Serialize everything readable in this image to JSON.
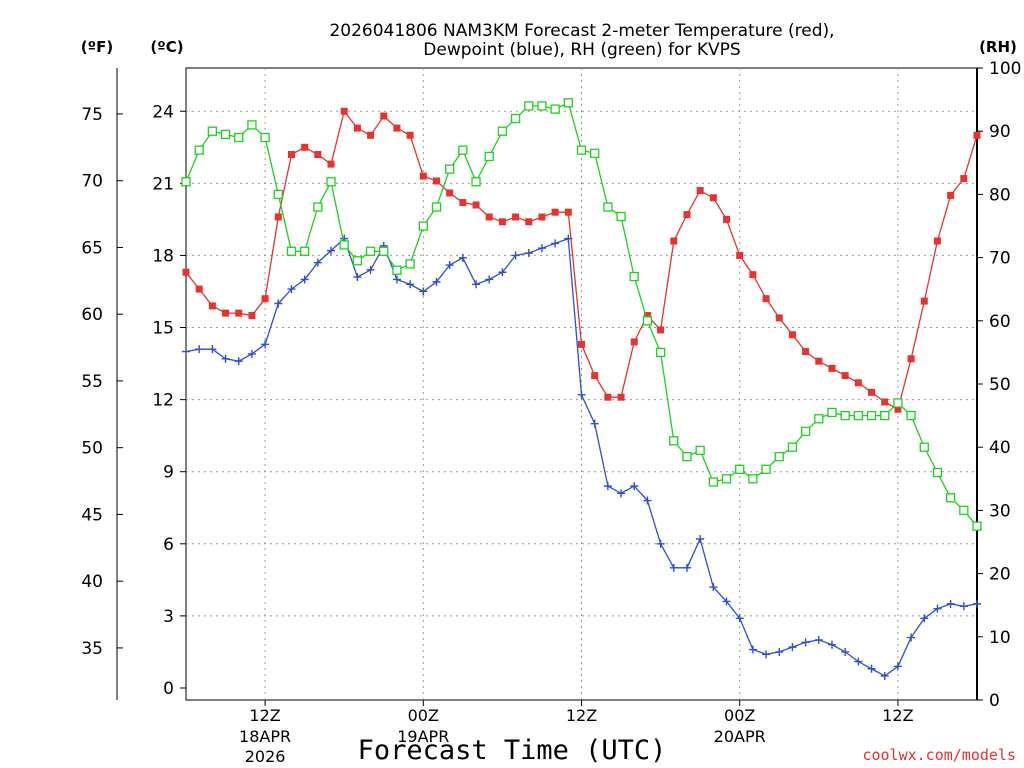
{
  "chart_data": {
    "type": "line",
    "title_line1": "2026041806 NAM3KM Forecast 2-meter Temperature (red),",
    "title_line2": "Dewpoint (blue), RH (green) for KVPS",
    "xlabel": "Forecast Time (UTC)",
    "watermark": "coolwx.com/models",
    "units": {
      "fahrenheit": "(ºF)",
      "celsius": "(ºC)",
      "rh": "(RH)"
    },
    "x_hours": [
      0,
      1,
      2,
      3,
      4,
      5,
      6,
      7,
      8,
      9,
      10,
      11,
      12,
      13,
      14,
      15,
      16,
      17,
      18,
      19,
      20,
      21,
      22,
      23,
      24,
      25,
      26,
      27,
      28,
      29,
      30,
      31,
      32,
      33,
      34,
      35,
      36,
      37,
      38,
      39,
      40,
      41,
      42,
      43,
      44,
      45,
      46,
      47,
      48,
      49,
      50,
      51,
      52,
      53,
      54,
      55,
      56,
      57,
      58,
      59,
      60
    ],
    "xlim": [
      0,
      60
    ],
    "x_ticks": [
      {
        "hour": 6,
        "line1": "12Z",
        "line2": "18APR",
        "line3": "2026"
      },
      {
        "hour": 18,
        "line1": "00Z",
        "line2": "19APR",
        "line3": ""
      },
      {
        "hour": 30,
        "line1": "12Z",
        "line2": "",
        "line3": ""
      },
      {
        "hour": 42,
        "line1": "00Z",
        "line2": "20APR",
        "line3": ""
      },
      {
        "hour": 54,
        "line1": "12Z",
        "line2": "",
        "line3": ""
      }
    ],
    "celsius_ticks": [
      "0",
      "3",
      "6",
      "9",
      "12",
      "15",
      "18",
      "21",
      "24"
    ],
    "fahrenheit_ticks": [
      "35",
      "40",
      "45",
      "50",
      "55",
      "60",
      "65",
      "70",
      "75"
    ],
    "rh_ticks": [
      "0",
      "10",
      "20",
      "30",
      "40",
      "50",
      "60",
      "70",
      "80",
      "90",
      "100"
    ],
    "c_range": [
      -0.5,
      25.8
    ],
    "series": [
      {
        "name": "2-meter Temperature (°C)",
        "color": "#e8322e",
        "marker": "filled-square",
        "values": [
          17.3,
          16.6,
          15.9,
          15.6,
          15.6,
          15.5,
          16.2,
          19.6,
          22.2,
          22.5,
          22.2,
          21.8,
          24.0,
          23.3,
          23.0,
          23.8,
          23.3,
          23.0,
          21.3,
          21.1,
          20.6,
          20.2,
          20.1,
          19.6,
          19.4,
          19.6,
          19.4,
          19.6,
          19.8,
          19.8,
          14.3,
          13.0,
          12.1,
          12.1,
          14.4,
          15.5,
          14.9,
          18.6,
          19.7,
          20.7,
          20.4,
          19.5,
          18.0,
          17.2,
          16.2,
          15.4,
          14.7,
          14.0,
          13.6,
          13.3,
          13.0,
          12.7,
          12.3,
          11.9,
          11.6,
          13.7,
          16.1,
          18.6,
          20.5,
          21.2,
          23.0
        ]
      },
      {
        "name": "Dewpoint (°C)",
        "color": "#2c4fd8",
        "marker": "plus",
        "values": [
          14.0,
          14.1,
          14.1,
          13.7,
          13.6,
          13.9,
          14.3,
          16.0,
          16.6,
          17.0,
          17.7,
          18.2,
          18.7,
          17.1,
          17.4,
          18.4,
          17.0,
          16.8,
          16.5,
          16.9,
          17.6,
          17.9,
          16.8,
          17.0,
          17.3,
          18.0,
          18.1,
          18.3,
          18.5,
          18.7,
          12.2,
          11.0,
          8.4,
          8.1,
          8.4,
          7.8,
          6.0,
          5.0,
          5.0,
          6.2,
          4.2,
          3.6,
          2.9,
          1.6,
          1.4,
          1.5,
          1.7,
          1.9,
          2.0,
          1.8,
          1.5,
          1.1,
          0.8,
          0.5,
          0.9,
          2.1,
          2.9,
          3.3,
          3.5,
          3.4,
          3.5
        ]
      },
      {
        "name": "RH (%)",
        "color": "#1ed11e",
        "marker": "open-square",
        "values": [
          82,
          87,
          90,
          89.5,
          89,
          91,
          89,
          80,
          71,
          71,
          78,
          82,
          72,
          69.5,
          71,
          71,
          68,
          69,
          75,
          78,
          84,
          87,
          82,
          86,
          90,
          92,
          94,
          94,
          93.5,
          94.5,
          87,
          86.5,
          78,
          76.5,
          67,
          60,
          55,
          41,
          38.5,
          39.5,
          34.5,
          35,
          36.5,
          35,
          36.5,
          38.5,
          40,
          42.5,
          44.5,
          45.5,
          45,
          45,
          45,
          45,
          47,
          45,
          40,
          36,
          32,
          30,
          27.5
        ]
      }
    ]
  }
}
